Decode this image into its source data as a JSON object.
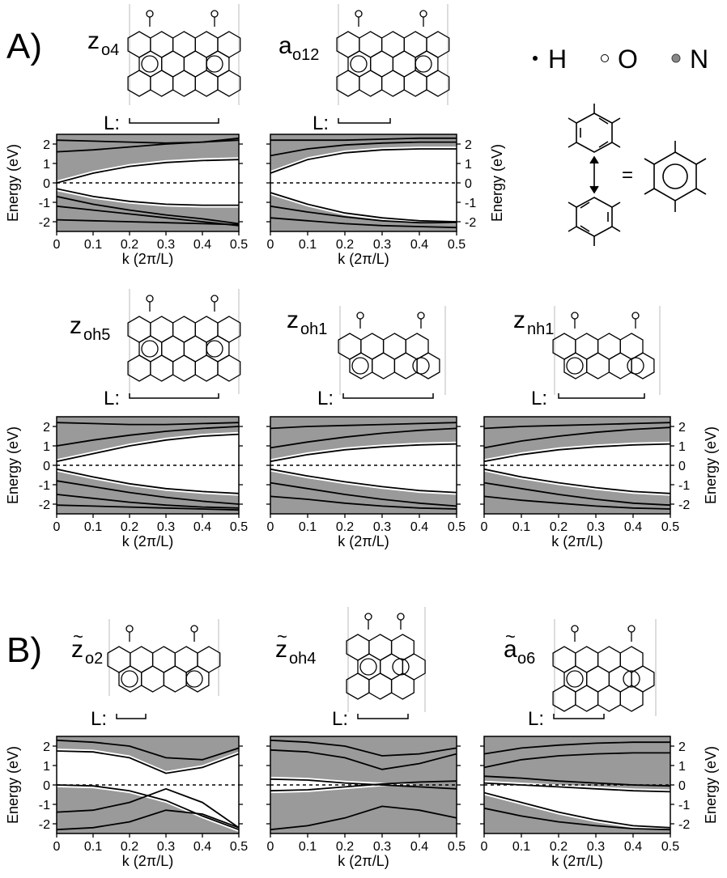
{
  "section_labels": [
    "A)",
    "B)"
  ],
  "legend": [
    {
      "symbol": "dot-filled-small",
      "label": "H"
    },
    {
      "symbol": "circle-open",
      "label": "O"
    },
    {
      "symbol": "circle-gray",
      "label": "N"
    }
  ],
  "equation_symbol": "=",
  "cell_label": "L:",
  "colors": {
    "band_fill": "#9a9a9a",
    "line": "#000000",
    "nitrogen": "#888888"
  },
  "chart_data": [
    {
      "id": "z_o4",
      "title": "z",
      "title_sub": "o4",
      "tilde": false,
      "type": "line",
      "xlabel": "k (2π/L)",
      "ylabel": "Energy (eV)",
      "xlim": [
        0,
        0.5
      ],
      "ylim": [
        -2.5,
        2.5
      ],
      "xticks": [
        "0",
        "0.1",
        "0.2",
        "0.3",
        "0.4",
        "0.5"
      ],
      "yticks": [
        "-2",
        "-1",
        "0",
        "1",
        "2"
      ],
      "fermi_level": 0,
      "series": [
        {
          "x": [
            0,
            0.1,
            0.2,
            0.3,
            0.4,
            0.5
          ],
          "y": [
            0,
            0.5,
            0.85,
            1.05,
            1.15,
            1.2
          ]
        },
        {
          "x": [
            0,
            0.1,
            0.2,
            0.3,
            0.4,
            0.5
          ],
          "y": [
            1.6,
            1.7,
            1.85,
            2.0,
            2.1,
            2.2
          ]
        },
        {
          "x": [
            0,
            0.1,
            0.2,
            0.3,
            0.4,
            0.5
          ],
          "y": [
            2.2,
            2.15,
            2.1,
            2.05,
            2.1,
            2.3
          ]
        },
        {
          "x": [
            0,
            0.1,
            0.2,
            0.3,
            0.4,
            0.5
          ],
          "y": [
            -0.3,
            -0.7,
            -0.95,
            -1.1,
            -1.15,
            -1.15
          ]
        },
        {
          "x": [
            0,
            0.1,
            0.2,
            0.3,
            0.4,
            0.5
          ],
          "y": [
            -0.7,
            -1.1,
            -1.4,
            -1.65,
            -1.85,
            -2.1
          ]
        },
        {
          "x": [
            0,
            0.1,
            0.2,
            0.3,
            0.4,
            0.5
          ],
          "y": [
            -1.2,
            -1.4,
            -1.6,
            -1.8,
            -2.0,
            -2.2
          ]
        },
        {
          "x": [
            0,
            0.1,
            0.2,
            0.3,
            0.4,
            0.5
          ],
          "y": [
            -1.9,
            -1.95,
            -2.0,
            -2.05,
            -2.1,
            -2.15
          ]
        }
      ]
    },
    {
      "id": "a_o12",
      "title": "a",
      "title_sub": "o12",
      "tilde": false,
      "type": "line",
      "xlabel": "k (2π/L)",
      "ylabel": "Energy (eV)",
      "xlim": [
        0,
        0.5
      ],
      "ylim": [
        -2.5,
        2.5
      ],
      "xticks": [
        "0",
        "0.1",
        "0.2",
        "0.3",
        "0.4",
        "0.5"
      ],
      "yticks": [
        "-2",
        "-1",
        "0",
        "1",
        "2"
      ],
      "fermi_level": 0,
      "series": [
        {
          "x": [
            0,
            0.1,
            0.2,
            0.3,
            0.4,
            0.5
          ],
          "y": [
            0.5,
            1.2,
            1.55,
            1.7,
            1.75,
            1.75
          ]
        },
        {
          "x": [
            0,
            0.1,
            0.2,
            0.3,
            0.4,
            0.5
          ],
          "y": [
            1.4,
            1.75,
            1.95,
            2.05,
            2.1,
            2.1
          ]
        },
        {
          "x": [
            0,
            0.1,
            0.2,
            0.3,
            0.4,
            0.5
          ],
          "y": [
            2.2,
            2.2,
            2.2,
            2.25,
            2.3,
            2.3
          ]
        },
        {
          "x": [
            0,
            0.1,
            0.2,
            0.3,
            0.4,
            0.5
          ],
          "y": [
            -0.5,
            -1.1,
            -1.55,
            -1.8,
            -1.95,
            -2.0
          ]
        },
        {
          "x": [
            0,
            0.1,
            0.2,
            0.3,
            0.4,
            0.5
          ],
          "y": [
            -1.2,
            -1.5,
            -1.75,
            -1.95,
            -2.05,
            -2.05
          ]
        },
        {
          "x": [
            0,
            0.1,
            0.2,
            0.3,
            0.4,
            0.5
          ],
          "y": [
            -1.8,
            -1.95,
            -2.1,
            -2.2,
            -2.25,
            -2.3
          ]
        }
      ]
    },
    {
      "id": "z_oh5",
      "title": "z",
      "title_sub": "oh5",
      "tilde": false,
      "type": "line",
      "xlabel": "k (2π/L)",
      "ylabel": "Energy (eV)",
      "xlim": [
        0,
        0.5
      ],
      "ylim": [
        -2.5,
        2.5
      ],
      "xticks": [
        "0",
        "0.1",
        "0.2",
        "0.3",
        "0.4",
        "0.5"
      ],
      "yticks": [
        "-2",
        "-1",
        "0",
        "1",
        "2"
      ],
      "fermi_level": 0,
      "series": [
        {
          "x": [
            0,
            0.1,
            0.2,
            0.3,
            0.4,
            0.5
          ],
          "y": [
            0.2,
            0.6,
            1.0,
            1.3,
            1.5,
            1.6
          ]
        },
        {
          "x": [
            0,
            0.1,
            0.2,
            0.3,
            0.4,
            0.5
          ],
          "y": [
            1.0,
            1.3,
            1.55,
            1.75,
            1.9,
            2.0
          ]
        },
        {
          "x": [
            0,
            0.1,
            0.2,
            0.3,
            0.4,
            0.5
          ],
          "y": [
            2.2,
            2.15,
            2.1,
            2.1,
            2.15,
            2.2
          ]
        },
        {
          "x": [
            0,
            0.1,
            0.2,
            0.3,
            0.4,
            0.5
          ],
          "y": [
            -0.2,
            -0.6,
            -0.95,
            -1.2,
            -1.35,
            -1.45
          ]
        },
        {
          "x": [
            0,
            0.1,
            0.2,
            0.3,
            0.4,
            0.5
          ],
          "y": [
            -0.8,
            -1.1,
            -1.4,
            -1.65,
            -1.85,
            -2.0
          ]
        },
        {
          "x": [
            0,
            0.1,
            0.2,
            0.3,
            0.4,
            0.5
          ],
          "y": [
            -1.5,
            -1.7,
            -1.9,
            -2.05,
            -2.15,
            -2.2
          ]
        },
        {
          "x": [
            0,
            0.1,
            0.2,
            0.3,
            0.4,
            0.5
          ],
          "y": [
            -2.05,
            -2.1,
            -2.15,
            -2.2,
            -2.25,
            -2.3
          ]
        }
      ]
    },
    {
      "id": "z_oh1",
      "title": "z",
      "title_sub": "oh1",
      "tilde": false,
      "type": "line",
      "xlabel": "k (2π/L)",
      "ylabel": "Energy (eV)",
      "xlim": [
        0,
        0.5
      ],
      "ylim": [
        -2.5,
        2.5
      ],
      "xticks": [
        "0",
        "0.1",
        "0.2",
        "0.3",
        "0.4",
        "0.5"
      ],
      "yticks": [
        "-2",
        "-1",
        "0",
        "1",
        "2"
      ],
      "fermi_level": 0,
      "series": [
        {
          "x": [
            0,
            0.1,
            0.2,
            0.3,
            0.4,
            0.5
          ],
          "y": [
            0.2,
            0.55,
            0.8,
            0.95,
            1.05,
            1.1
          ]
        },
        {
          "x": [
            0,
            0.1,
            0.2,
            0.3,
            0.4,
            0.5
          ],
          "y": [
            0.9,
            1.2,
            1.45,
            1.65,
            1.8,
            1.9
          ]
        },
        {
          "x": [
            0,
            0.1,
            0.2,
            0.3,
            0.4,
            0.5
          ],
          "y": [
            1.9,
            2.0,
            2.05,
            2.1,
            2.15,
            2.2
          ]
        },
        {
          "x": [
            0,
            0.1,
            0.2,
            0.3,
            0.4,
            0.5
          ],
          "y": [
            -0.2,
            -0.55,
            -0.85,
            -1.1,
            -1.3,
            -1.4
          ]
        },
        {
          "x": [
            0,
            0.1,
            0.2,
            0.3,
            0.4,
            0.5
          ],
          "y": [
            -0.9,
            -1.2,
            -1.5,
            -1.75,
            -1.95,
            -2.1
          ]
        },
        {
          "x": [
            0,
            0.1,
            0.2,
            0.3,
            0.4,
            0.5
          ],
          "y": [
            -1.6,
            -1.75,
            -1.95,
            -2.1,
            -2.2,
            -2.25
          ]
        }
      ]
    },
    {
      "id": "z_nh1",
      "title": "z",
      "title_sub": "nh1",
      "tilde": false,
      "type": "line",
      "xlabel": "k (2π/L)",
      "ylabel": "Energy (eV)",
      "xlim": [
        0,
        0.5
      ],
      "ylim": [
        -2.5,
        2.5
      ],
      "xticks": [
        "0",
        "0.1",
        "0.2",
        "0.3",
        "0.4",
        "0.5"
      ],
      "yticks": [
        "-2",
        "-1",
        "0",
        "1",
        "2"
      ],
      "fermi_level": 0,
      "series": [
        {
          "x": [
            0,
            0.1,
            0.2,
            0.3,
            0.4,
            0.5
          ],
          "y": [
            0.2,
            0.55,
            0.8,
            0.95,
            1.05,
            1.1
          ]
        },
        {
          "x": [
            0,
            0.1,
            0.2,
            0.3,
            0.4,
            0.5
          ],
          "y": [
            0.9,
            1.25,
            1.5,
            1.7,
            1.85,
            1.95
          ]
        },
        {
          "x": [
            0,
            0.1,
            0.2,
            0.3,
            0.4,
            0.5
          ],
          "y": [
            1.9,
            2.0,
            2.05,
            2.1,
            2.15,
            2.2
          ]
        },
        {
          "x": [
            0,
            0.1,
            0.2,
            0.3,
            0.4,
            0.5
          ],
          "y": [
            -0.2,
            -0.6,
            -0.9,
            -1.15,
            -1.35,
            -1.45
          ]
        },
        {
          "x": [
            0,
            0.1,
            0.2,
            0.3,
            0.4,
            0.5
          ],
          "y": [
            -0.9,
            -1.2,
            -1.5,
            -1.75,
            -1.95,
            -2.05
          ]
        },
        {
          "x": [
            0,
            0.1,
            0.2,
            0.3,
            0.4,
            0.5
          ],
          "y": [
            -1.6,
            -1.8,
            -1.95,
            -2.1,
            -2.2,
            -2.25
          ]
        }
      ]
    },
    {
      "id": "zt_o2",
      "title": "z",
      "title_sub": "o2",
      "tilde": true,
      "type": "line",
      "xlabel": "k (2π/L)",
      "ylabel": "Energy (eV)",
      "xlim": [
        0,
        0.5
      ],
      "ylim": [
        -2.5,
        2.5
      ],
      "xticks": [
        "0",
        "0.1",
        "0.2",
        "0.3",
        "0.4",
        "0.5"
      ],
      "yticks": [
        "-2",
        "-1",
        "0",
        "1",
        "2"
      ],
      "fermi_level": 0,
      "series": [
        {
          "x": [
            0,
            0.1,
            0.2,
            0.3,
            0.4,
            0.5
          ],
          "y": [
            1.75,
            1.7,
            1.4,
            0.6,
            0.9,
            1.6
          ]
        },
        {
          "x": [
            0,
            0.1,
            0.2,
            0.3,
            0.4,
            0.5
          ],
          "y": [
            2.3,
            2.2,
            2.0,
            1.4,
            1.3,
            1.9
          ]
        },
        {
          "x": [
            0,
            0.1,
            0.2,
            0.3,
            0.4,
            0.5
          ],
          "y": [
            0,
            -0.05,
            -0.3,
            -0.8,
            -1.6,
            -2.3
          ]
        },
        {
          "x": [
            0,
            0.1,
            0.2,
            0.3,
            0.4,
            0.5
          ],
          "y": [
            -1.4,
            -1.3,
            -0.9,
            -0.2,
            -0.9,
            -2.2
          ]
        },
        {
          "x": [
            0,
            0.1,
            0.2,
            0.3,
            0.4,
            0.5
          ],
          "y": [
            -2.3,
            -2.2,
            -1.9,
            -1.3,
            -1.5,
            -2.2
          ]
        }
      ]
    },
    {
      "id": "zt_oh4",
      "title": "z",
      "title_sub": "oh4",
      "tilde": true,
      "type": "line",
      "xlabel": "k (2π/L)",
      "ylabel": "Energy (eV)",
      "xlim": [
        0,
        0.5
      ],
      "ylim": [
        -2.5,
        2.5
      ],
      "xticks": [
        "0",
        "0.1",
        "0.2",
        "0.3",
        "0.4",
        "0.5"
      ],
      "yticks": [
        "-2",
        "-1",
        "0",
        "1",
        "2"
      ],
      "fermi_level": 0,
      "series": [
        {
          "x": [
            0,
            0.1,
            0.2,
            0.3,
            0.4,
            0.5
          ],
          "y": [
            1.8,
            1.7,
            1.4,
            0.8,
            1.1,
            1.6
          ]
        },
        {
          "x": [
            0,
            0.1,
            0.2,
            0.3,
            0.4,
            0.5
          ],
          "y": [
            2.3,
            2.2,
            2.0,
            1.5,
            1.6,
            1.9
          ]
        },
        {
          "x": [
            0,
            0.1,
            0.2,
            0.3,
            0.4,
            0.5
          ],
          "y": [
            0.3,
            0.25,
            0.1,
            0.0,
            -0.1,
            -0.2
          ]
        },
        {
          "x": [
            0,
            0.1,
            0.2,
            0.3,
            0.4,
            0.5
          ],
          "y": [
            -0.3,
            -0.25,
            -0.1,
            0.05,
            0.15,
            0.2
          ]
        },
        {
          "x": [
            0,
            0.1,
            0.2,
            0.3,
            0.4,
            0.5
          ],
          "y": [
            -2.3,
            -2.1,
            -1.7,
            -1.1,
            -1.3,
            -1.7
          ]
        }
      ]
    },
    {
      "id": "at_o6",
      "title": "a",
      "title_sub": "o6",
      "tilde": true,
      "type": "line",
      "xlabel": "k (2π/L)",
      "ylabel": "Energy (eV)",
      "xlim": [
        0,
        0.5
      ],
      "ylim": [
        -2.5,
        2.5
      ],
      "xticks": [
        "0",
        "0.1",
        "0.2",
        "0.3",
        "0.4",
        "0.5"
      ],
      "yticks": [
        "-2",
        "-1",
        "0",
        "1",
        "2"
      ],
      "fermi_level": 0,
      "series": [
        {
          "x": [
            0,
            0.1,
            0.2,
            0.3,
            0.4,
            0.5
          ],
          "y": [
            0.9,
            1.3,
            1.5,
            1.6,
            1.65,
            1.65
          ]
        },
        {
          "x": [
            0,
            0.1,
            0.2,
            0.3,
            0.4,
            0.5
          ],
          "y": [
            1.6,
            1.9,
            2.05,
            2.15,
            2.2,
            2.2
          ]
        },
        {
          "x": [
            0,
            0.1,
            0.2,
            0.3,
            0.4,
            0.5
          ],
          "y": [
            0.45,
            0.35,
            0.2,
            0.1,
            0.0,
            -0.05
          ]
        },
        {
          "x": [
            0,
            0.1,
            0.2,
            0.3,
            0.4,
            0.5
          ],
          "y": [
            0.1,
            0.0,
            -0.1,
            -0.2,
            -0.3,
            -0.35
          ]
        },
        {
          "x": [
            0,
            0.1,
            0.2,
            0.3,
            0.4,
            0.5
          ],
          "y": [
            -0.4,
            -0.9,
            -1.4,
            -1.8,
            -2.1,
            -2.2
          ]
        },
        {
          "x": [
            0,
            0.1,
            0.2,
            0.3,
            0.4,
            0.5
          ],
          "y": [
            -1.2,
            -1.6,
            -1.9,
            -2.1,
            -2.25,
            -2.3
          ]
        }
      ]
    }
  ]
}
